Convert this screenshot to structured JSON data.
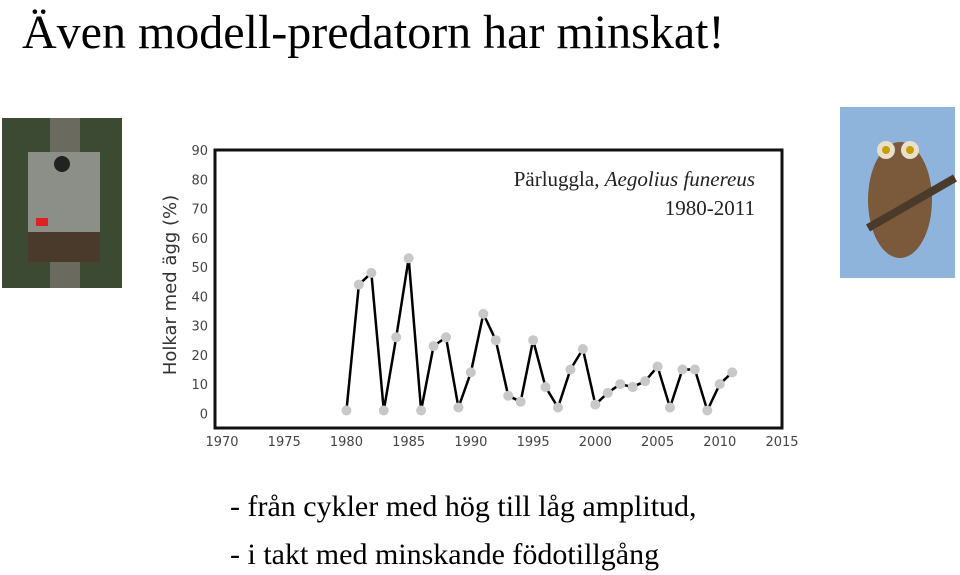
{
  "slide": {
    "title": "Även modell-predatorn har minskat!",
    "bullets": [
      "- från cykler med hög till låg amplitud,",
      "- i takt med minskande födotillgång"
    ]
  },
  "chart_data": {
    "type": "line",
    "annotation_species_label": "Pärluggla,",
    "annotation_species": "Aegolius funereus",
    "annotation_period": "1980-2011",
    "y_label": "Holkar med ägg (%)",
    "x": [
      1980,
      1981,
      1982,
      1983,
      1984,
      1985,
      1986,
      1987,
      1988,
      1989,
      1990,
      1991,
      1992,
      1993,
      1994,
      1995,
      1996,
      1997,
      1998,
      1999,
      2000,
      2001,
      2002,
      2003,
      2004,
      2005,
      2006,
      2007,
      2008,
      2009,
      2010,
      2011
    ],
    "series": [
      {
        "color": "#000000",
        "marker_color": "#c8c8c8",
        "values": [
          1,
          44,
          48,
          1,
          26,
          53,
          1,
          23,
          26,
          2,
          14,
          34,
          25,
          6,
          4,
          25,
          9,
          2,
          15,
          22,
          3,
          7,
          10,
          9,
          11,
          16,
          2,
          15,
          15,
          1,
          10,
          14
        ]
      }
    ],
    "xlim": [
      1970,
      2015
    ],
    "xticks": [
      1970,
      1975,
      1980,
      1985,
      1990,
      1995,
      2000,
      2005,
      2010,
      2015
    ],
    "ylim": [
      -5,
      90
    ],
    "yticks": [
      0,
      10,
      20,
      30,
      40,
      50,
      60,
      70,
      80,
      90
    ],
    "grid": false
  }
}
